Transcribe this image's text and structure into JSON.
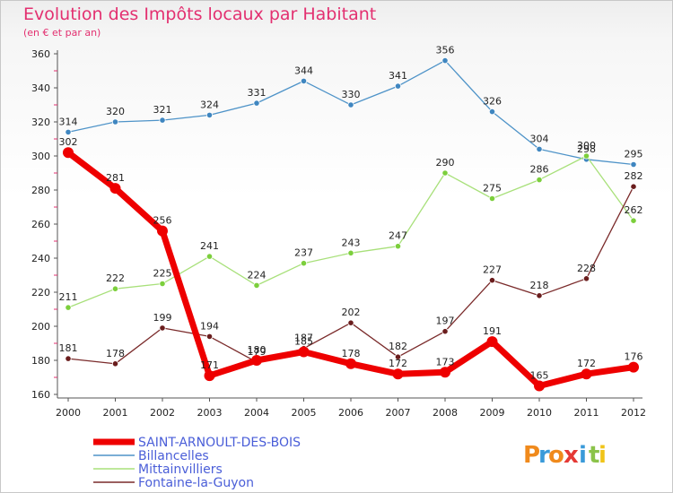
{
  "chart_data": {
    "type": "line",
    "title": "Evolution des Impôts locaux par Habitant",
    "subtitle": "(en € et par an)",
    "x": [
      "2000",
      "2001",
      "2002",
      "2003",
      "2004",
      "2005",
      "2006",
      "2007",
      "2008",
      "2009",
      "2010",
      "2011",
      "2012"
    ],
    "yticks": [
      "160",
      "180",
      "200",
      "220",
      "240",
      "260",
      "280",
      "300",
      "320",
      "340",
      "360"
    ],
    "ylim": [
      160,
      360
    ],
    "series": [
      {
        "name": "Billancelles",
        "color": "#4e93c8",
        "marker": "#3f86c0",
        "values": [
          314,
          320,
          321,
          324,
          331,
          344,
          330,
          341,
          356,
          326,
          304,
          298,
          295
        ],
        "labels": [
          "314",
          "320",
          "321",
          "324",
          "331",
          "344",
          "330",
          "341",
          "356",
          "326",
          "304",
          "298",
          "295"
        ]
      },
      {
        "name": "Mittainvilliers",
        "color": "#a8e07a",
        "marker": "#7ccf3c",
        "values": [
          211,
          222,
          225,
          241,
          224,
          237,
          243,
          247,
          290,
          275,
          286,
          300,
          262
        ],
        "labels": [
          "211",
          "222",
          "225",
          "241",
          "224",
          "237",
          "243",
          "247",
          "290",
          "275",
          "286",
          "300",
          "262"
        ]
      },
      {
        "name": "Fontaine-la-Guyon",
        "color": "#7a2a2a",
        "marker": "#6a1d1d",
        "values": [
          181,
          178,
          199,
          194,
          179,
          187,
          202,
          182,
          197,
          227,
          218,
          228,
          282
        ],
        "labels": [
          "181",
          "178",
          "199",
          "194",
          "179",
          "187",
          "202",
          "182",
          "197",
          "227",
          "218",
          "228",
          "282"
        ]
      },
      {
        "name": "SAINT-ARNOULT-DES-BOIS",
        "color": "#ee0000",
        "marker": "#ee0000",
        "values": [
          302,
          281,
          256,
          171,
          180,
          185,
          178,
          172,
          173,
          191,
          165,
          172,
          176
        ],
        "labels": [
          "302",
          "281",
          "256",
          "171",
          "180",
          "185",
          "178",
          "172",
          "173",
          "191",
          "165",
          "172",
          "176"
        ]
      }
    ],
    "legend": [
      {
        "name": "SAINT-ARNOULT-DES-BOIS",
        "color": "#ee0000",
        "text_color": "#4a5ed8"
      },
      {
        "name": "Billancelles",
        "color": "#4e93c8",
        "text_color": "#4a5ed8"
      },
      {
        "name": "Mittainvilliers",
        "color": "#a8e07a",
        "text_color": "#4a5ed8"
      },
      {
        "name": "Fontaine-la-Guyon",
        "color": "#7a2a2a",
        "text_color": "#4a5ed8"
      }
    ],
    "legend_position": "bottom-left",
    "grid": false
  },
  "brand": {
    "letters": [
      "P",
      "r",
      "o",
      "x",
      "i",
      "t",
      "i"
    ],
    "colors": [
      "#f08a1c",
      "#3a9ad9",
      "#f08a1c",
      "#e53935",
      "#3a9ad9",
      "#8bc34a",
      "#f0c419"
    ]
  }
}
